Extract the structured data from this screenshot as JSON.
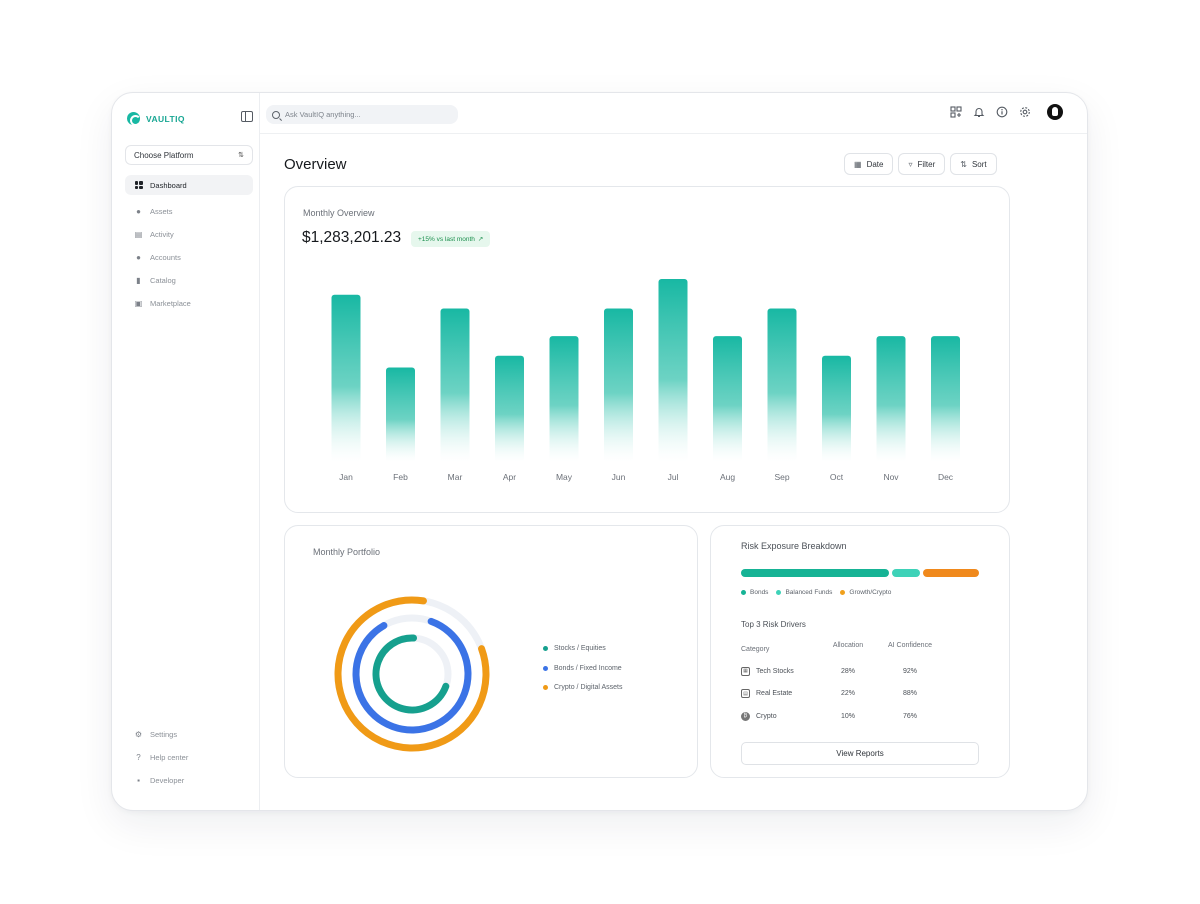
{
  "brand": {
    "name": "VAULTIQ"
  },
  "platform": {
    "label": "Choose Platform"
  },
  "nav": [
    {
      "label": "Dashboard",
      "icon": "dashboard-icon",
      "active": true
    },
    {
      "label": "Assets",
      "icon": "money-bag-icon"
    },
    {
      "label": "Activity",
      "icon": "chart-icon"
    },
    {
      "label": "Accounts",
      "icon": "users-icon"
    },
    {
      "label": "Catalog",
      "icon": "book-icon"
    },
    {
      "label": "Marketplace",
      "icon": "shopping-bag-icon"
    }
  ],
  "nav_bottom": [
    {
      "label": "Settings",
      "icon": "gear-icon"
    },
    {
      "label": "Help center",
      "icon": "question-icon"
    },
    {
      "label": "Developer",
      "icon": "terminal-icon"
    }
  ],
  "search": {
    "placeholder": "Ask VaultIQ anything..."
  },
  "header_icons": [
    "apps-add-icon",
    "bell-icon",
    "info-icon",
    "gear-icon",
    "avatar"
  ],
  "page_title": "Overview",
  "actions": [
    {
      "label": "Date",
      "icon": "calendar-icon"
    },
    {
      "label": "Filter",
      "icon": "filter-icon"
    },
    {
      "label": "Sort",
      "icon": "sort-icon"
    }
  ],
  "monthly_overview": {
    "title": "Monthly Overview",
    "value": "$1,283,201.23",
    "badge": "+15% vs last month",
    "badge_color": "#1b8f4d"
  },
  "chart_data": {
    "type": "bar",
    "categories": [
      "Jan",
      "Feb",
      "Mar",
      "Apr",
      "May",
      "Jun",
      "Jul",
      "Aug",
      "Sep",
      "Oct",
      "Nov",
      "Dec"
    ],
    "values": [
      85,
      48,
      78,
      54,
      64,
      78,
      93,
      64,
      78,
      54,
      64,
      64
    ],
    "ylim": [
      0,
      100
    ],
    "color": "#18b8a3",
    "grid": false,
    "title": "",
    "xlabel": "",
    "ylabel": ""
  },
  "portfolio": {
    "title": "Monthly Portfolio",
    "legend": [
      {
        "label": "Stocks / Equities",
        "color": "#16a08e"
      },
      {
        "label": "Bonds / Fixed Income",
        "color": "#3b73e6"
      },
      {
        "label": "Crypto / Digital Assets",
        "color": "#f09a16"
      }
    ],
    "rings": [
      {
        "series": "Crypto / Digital Assets",
        "fraction": 0.83
      },
      {
        "series": "Bonds / Fixed Income",
        "fraction": 0.86
      },
      {
        "series": "Stocks / Equities",
        "fraction": 0.7
      }
    ]
  },
  "risk": {
    "title": "Risk Exposure Breakdown",
    "segments": [
      {
        "label": "Bonds",
        "fraction": 0.64,
        "color": "#16b395"
      },
      {
        "label": "Balanced Funds",
        "fraction": 0.12,
        "color": "#3ed2b8"
      },
      {
        "label": "Growth/Crypto",
        "fraction": 0.24,
        "color": "#f0891c"
      }
    ],
    "drivers_title": "Top 3 Risk Drivers",
    "columns": [
      "Category",
      "Allocation",
      "AI Confidence"
    ],
    "rows": [
      {
        "category": "Tech Stocks",
        "allocation": "28%",
        "confidence": "92%",
        "icon": "chip-icon"
      },
      {
        "category": "Real Estate",
        "allocation": "22%",
        "confidence": "88%",
        "icon": "building-icon"
      },
      {
        "category": "Crypto",
        "allocation": "10%",
        "confidence": "76%",
        "icon": "bitcoin-icon"
      }
    ],
    "button": "View Reports"
  }
}
